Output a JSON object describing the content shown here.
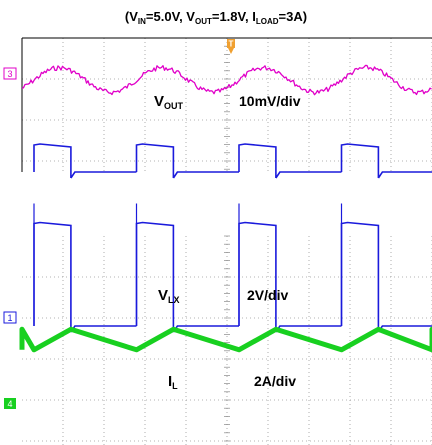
{
  "chart_data": {
    "type": "line",
    "title": "(VIN=5.0V, VOUT=1.8V, ILOAD=3A)",
    "title_parts": {
      "v_in_name": "V",
      "v_in_sub": "IN",
      "v_in_value": "=5.0V, ",
      "v_out_name": "V",
      "v_out_sub": "OUT",
      "v_out_value": "=1.8V, ",
      "i_load_name": "I",
      "i_load_sub": "LOAD",
      "i_load_value": "=3A)",
      "open_paren": "("
    },
    "x_divisions": 10,
    "grid": "dotted",
    "switching_periods_on_screen": 4,
    "trigger_marker": "T",
    "channels": [
      {
        "id": "3",
        "marker": "3",
        "name_main": "V",
        "name_sub": "OUT",
        "scale": "10mV/div",
        "color": "#e000c8",
        "coupling": "AC ripple",
        "ripple_div": 0.6
      },
      {
        "id": "1",
        "marker": "1",
        "name_main": "V",
        "name_sub": "LX",
        "scale": "2V/div",
        "color": "#1a1adc",
        "high_div": 2.5,
        "low_div": 0,
        "duty_cycle": 0.36
      },
      {
        "id": "4",
        "marker": "4",
        "name_main": "I",
        "name_sub": "L",
        "scale": "2A/div",
        "color": "#18d020",
        "peak_div": 0.75,
        "valley_div": 0.25
      }
    ]
  }
}
